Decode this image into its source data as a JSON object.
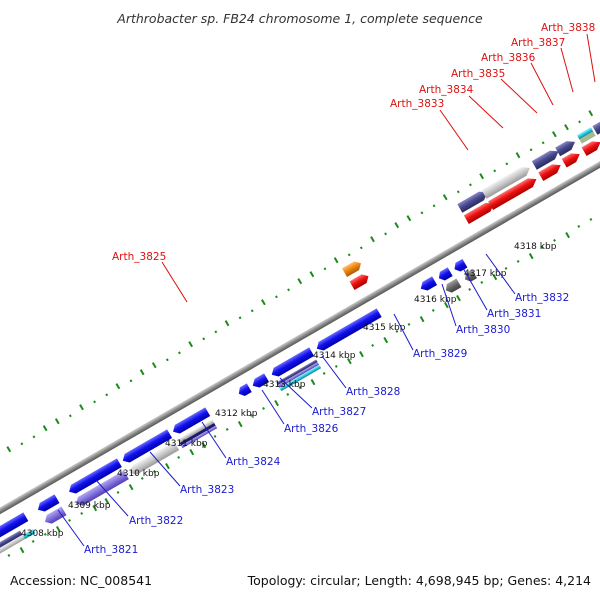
{
  "title": "Arthrobacter sp. FB24 chromosome 1, complete sequence",
  "footer": {
    "accession": "Accession: NC_008541",
    "summary": "Topology: circular; Length: 4,698,945 bp; Genes: 4,214"
  },
  "ticks": [
    "4308 kbp",
    "4309 kbp",
    "4310 kbp",
    "4311 kbp",
    "4312 kbp",
    "4313 kbp",
    "4314 kbp",
    "4315 kbp",
    "4316 kbp",
    "4317 kbp",
    "4318 kbp"
  ],
  "genes_forward": [
    "Arth_3825",
    "Arth_3833",
    "Arth_3834",
    "Arth_3835",
    "Arth_3836",
    "Arth_3837",
    "Arth_3838"
  ],
  "genes_reverse": [
    "Arth_3821",
    "Arth_3822",
    "Arth_3823",
    "Arth_3824",
    "Arth_3826",
    "Arth_3827",
    "Arth_3828",
    "Arth_3829",
    "Arth_3830",
    "Arth_3831",
    "Arth_3832"
  ],
  "colors": {
    "backbone": "#8a8a8a",
    "forward_cds": "#ee1111",
    "forward_orange": "#ee8811",
    "reverse_cds": "#1111ee",
    "cog_purple": "#4a4a8f",
    "cog_light": "#c8c8c8",
    "cog_violet": "#8070dd",
    "cog_cyan": "#22ccdd",
    "cog_grey": "#666666",
    "tick_green": "#1a8a1a",
    "label_red": "#dd1111",
    "label_blue": "#1a1ad0"
  }
}
